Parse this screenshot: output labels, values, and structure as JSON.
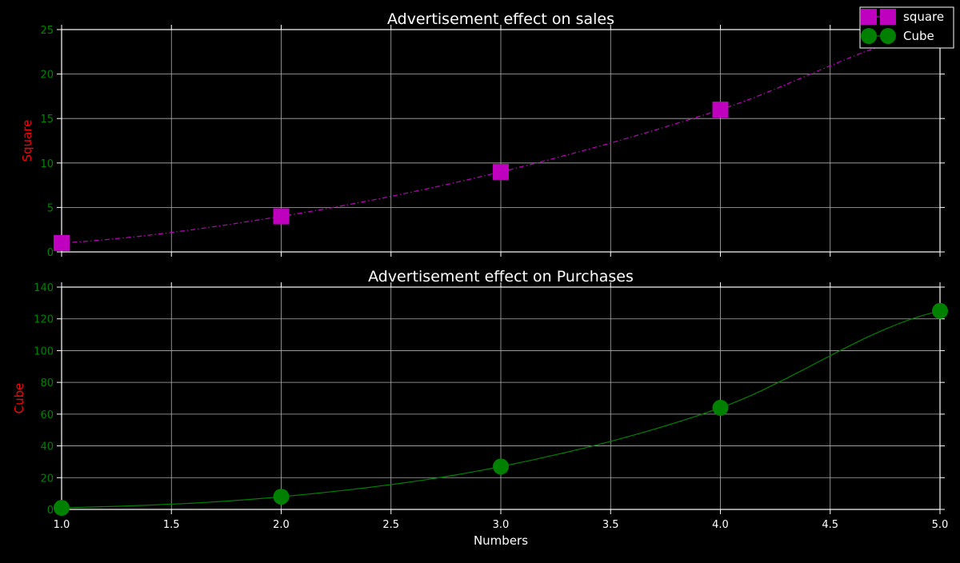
{
  "chart_data": [
    {
      "type": "line",
      "title": "Advertisement effect on sales",
      "xlabel": "",
      "ylabel": "Square",
      "x": [
        1,
        2,
        3,
        4,
        5
      ],
      "xlim": [
        1.0,
        5.0
      ],
      "ylim": [
        0,
        25
      ],
      "x_ticks": [
        "1.0",
        "1.5",
        "2.0",
        "2.5",
        "3.0",
        "3.5",
        "4.0",
        "4.5",
        "5.0"
      ],
      "y_ticks": [
        "0",
        "5",
        "10",
        "15",
        "20",
        "25"
      ],
      "grid": true,
      "series": [
        {
          "name": "square",
          "values": [
            1,
            4,
            9,
            16,
            25
          ],
          "color": "#bf00bf",
          "marker": "square",
          "line_style": "dash-dot"
        }
      ]
    },
    {
      "type": "line",
      "title": "Advertisement effect on Purchases",
      "xlabel": "Numbers",
      "ylabel": "Cube",
      "x": [
        1,
        2,
        3,
        4,
        5
      ],
      "xlim": [
        1.0,
        5.0
      ],
      "ylim": [
        0,
        140
      ],
      "x_ticks": [
        "1.0",
        "1.5",
        "2.0",
        "2.5",
        "3.0",
        "3.5",
        "4.0",
        "4.5",
        "5.0"
      ],
      "y_ticks": [
        "0",
        "20",
        "40",
        "60",
        "80",
        "100",
        "120",
        "140"
      ],
      "grid": true,
      "series": [
        {
          "name": "Cube",
          "values": [
            1,
            8,
            27,
            64,
            125
          ],
          "color": "#008000",
          "marker": "circle",
          "line_style": "solid"
        }
      ]
    }
  ],
  "legend": {
    "placement": "top-right",
    "entries": [
      "square",
      "Cube"
    ]
  },
  "colors": {
    "background": "#000000",
    "axes": "#ffffff",
    "grid": "#b0b0b0",
    "tick_label_y": "#008000",
    "tick_label_x": "#ffffff",
    "ylabel": "#ff0000",
    "title": "#ffffff"
  }
}
